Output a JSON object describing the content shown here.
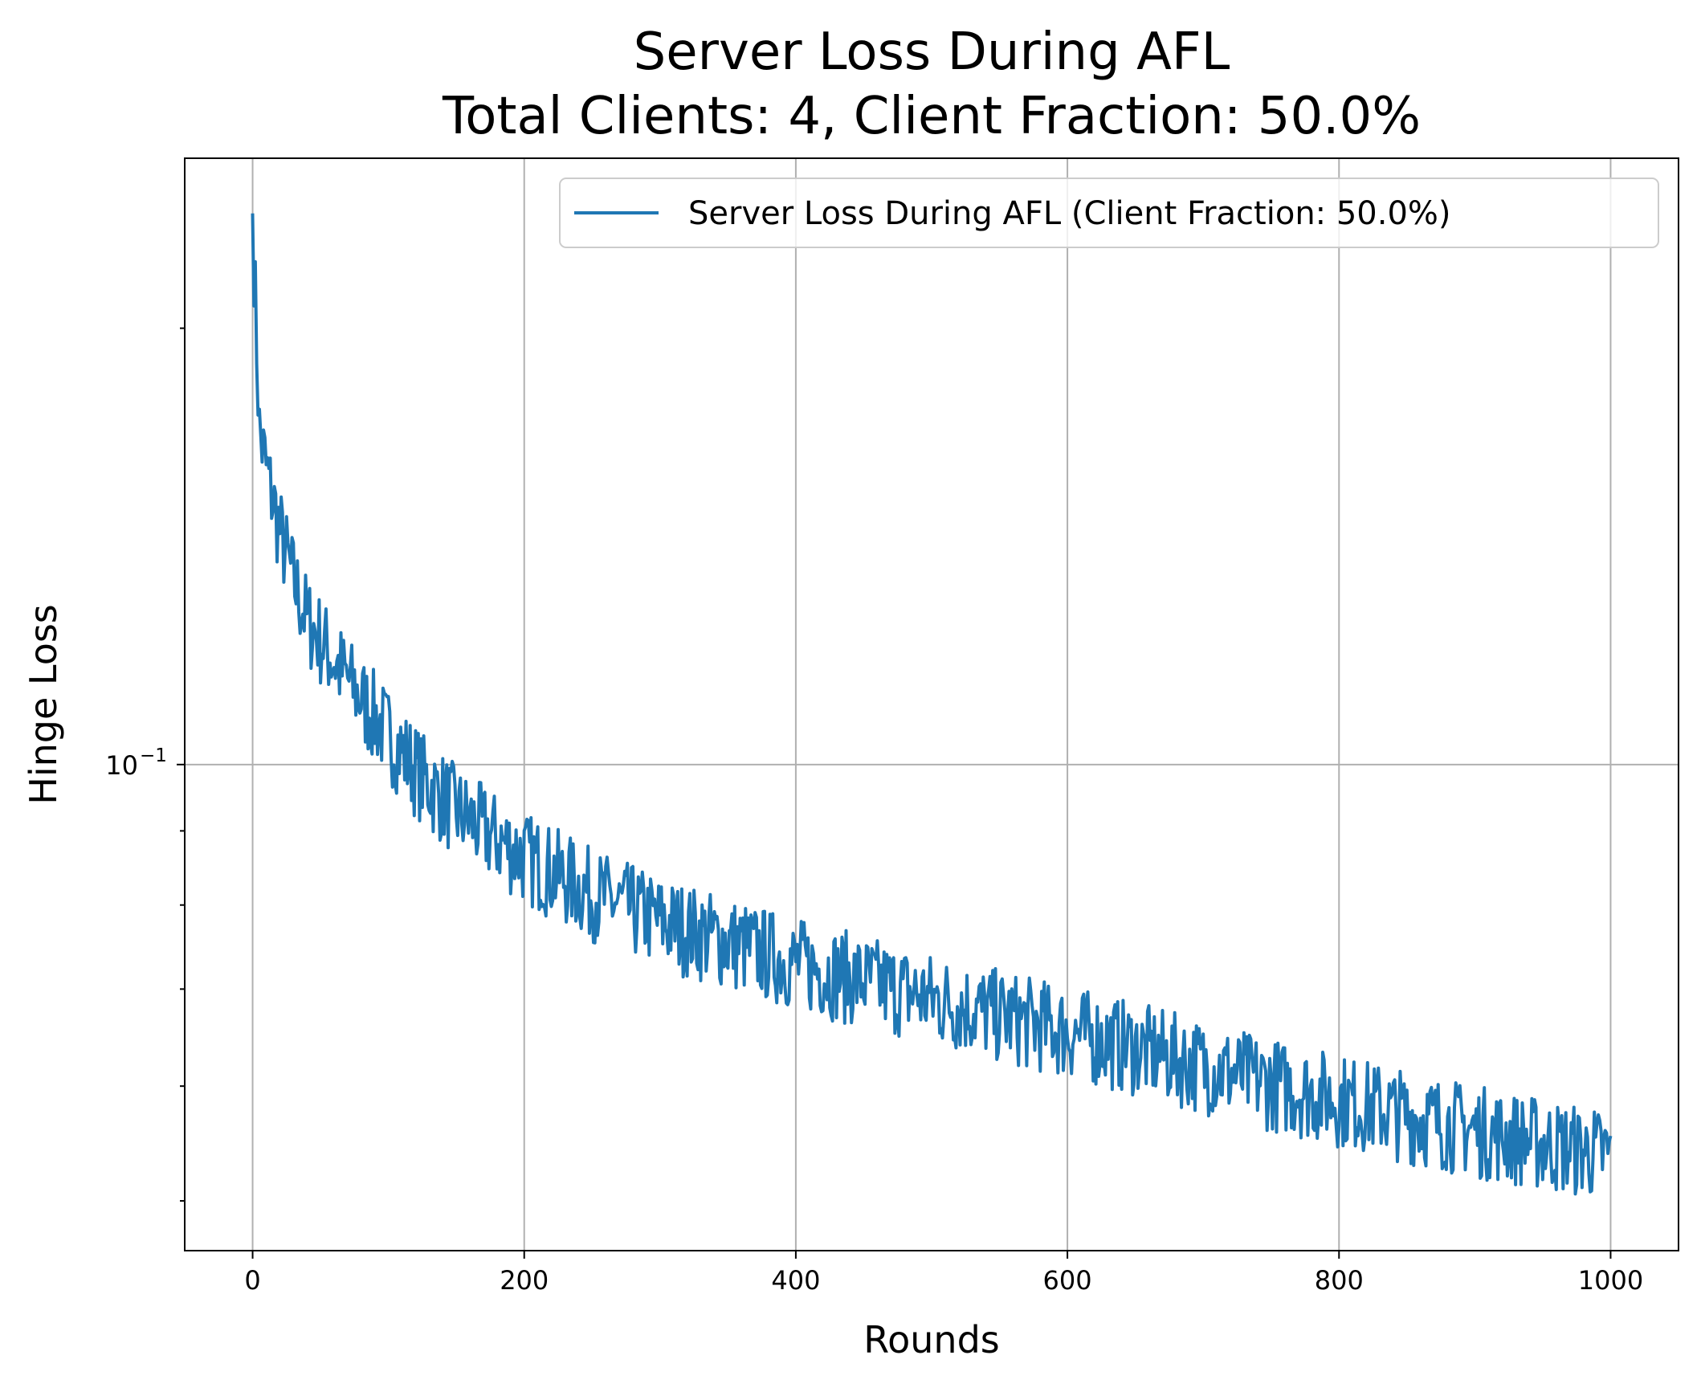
{
  "chart_data": {
    "type": "line",
    "title": [
      "Server Loss During AFL",
      "Total Clients: 4, Client Fraction: 50.0%"
    ],
    "xlabel": "Rounds",
    "ylabel": "Hinge Loss",
    "xlim": [
      -50,
      1050
    ],
    "ylim": [
      0.0462,
      0.262
    ],
    "yscale": "log",
    "grid": true,
    "legend_position": "top-right",
    "x_ticks": [
      0,
      200,
      400,
      600,
      800,
      1000
    ],
    "y_major_ticks": [
      {
        "value": 0.1,
        "base": "10",
        "exponent": "−1"
      }
    ],
    "y_minor_ticks": [
      0.05,
      0.06,
      0.07,
      0.08,
      0.09,
      0.2
    ],
    "colors": {
      "series": "#1f77b4"
    },
    "series": [
      {
        "name": "Server Loss During AFL (Client Fraction: 50.0%)",
        "color": "#1f77b4",
        "x": [
          0,
          5,
          10,
          20,
          30,
          40,
          50,
          60,
          80,
          100,
          125,
          150,
          175,
          200,
          250,
          300,
          350,
          400,
          450,
          500,
          550,
          600,
          650,
          700,
          750,
          800,
          850,
          900,
          950,
          1000
        ],
        "y": [
          0.24,
          0.17,
          0.16,
          0.145,
          0.134,
          0.126,
          0.122,
          0.118,
          0.111,
          0.105,
          0.098,
          0.093,
          0.0895,
          0.0865,
          0.0815,
          0.078,
          0.0755,
          0.073,
          0.071,
          0.069,
          0.0672,
          0.0655,
          0.0638,
          0.062,
          0.0603,
          0.0588,
          0.0573,
          0.056,
          0.0548,
          0.0538
        ],
        "noise_amplitude": 0.075,
        "seed": 7
      }
    ]
  }
}
